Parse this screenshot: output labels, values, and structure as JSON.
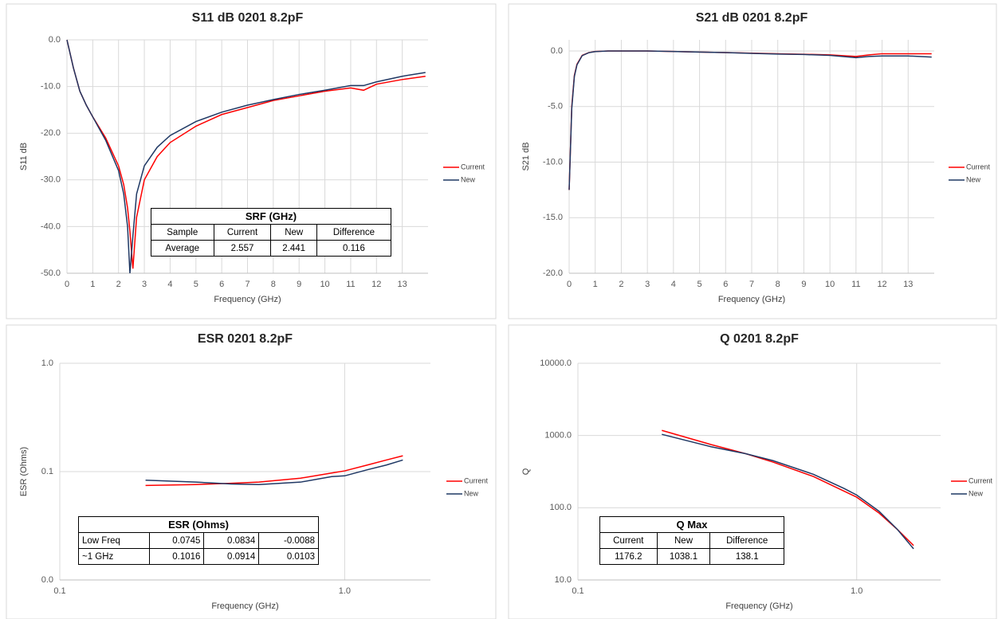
{
  "chart_data": [
    {
      "type": "line",
      "title": "S11 dB 0201 8.2pF",
      "x_label": "Frequency  (GHz)",
      "y_label": "S11 dB",
      "x": [
        0,
        0.25,
        0.5,
        0.75,
        1,
        1.5,
        2,
        2.2,
        2.35,
        2.441,
        2.557,
        2.7,
        3,
        3.5,
        4,
        5,
        6,
        7,
        8,
        9,
        10,
        11,
        11.5,
        12,
        13,
        13.9
      ],
      "series": [
        {
          "name": "Current",
          "color": "#ff0000",
          "values": [
            0,
            -6,
            -11,
            -14,
            -16.5,
            -21,
            -27,
            -31,
            -36,
            -41,
            -49,
            -38,
            -30,
            -25,
            -22,
            -18.5,
            -16,
            -14.5,
            -13,
            -12,
            -11,
            -10.3,
            -10.8,
            -9.5,
            -8.5,
            -7.8
          ]
        },
        {
          "name": "New",
          "color": "#1f3864",
          "values": [
            0,
            -6,
            -11,
            -14,
            -16.5,
            -21.5,
            -28,
            -33,
            -40,
            -50,
            -42,
            -33,
            -27,
            -23,
            -20.5,
            -17.5,
            -15.5,
            -14,
            -12.8,
            -11.7,
            -10.8,
            -9.8,
            -9.8,
            -9,
            -7.8,
            -7
          ]
        }
      ],
      "xlim": [
        0,
        14
      ],
      "xticks": [
        0,
        1,
        2,
        3,
        4,
        5,
        6,
        7,
        8,
        9,
        10,
        11,
        12,
        13
      ],
      "ylim": [
        -50,
        0
      ],
      "yticks": [
        {
          "value": 0,
          "label": "0.0"
        },
        {
          "value": -10,
          "label": "-10.0"
        },
        {
          "value": -20,
          "label": "-20.0"
        },
        {
          "value": -30,
          "label": "-30.0"
        },
        {
          "value": -40,
          "label": "-40.0"
        },
        {
          "value": -50,
          "label": "-50.0"
        }
      ],
      "grid": true,
      "legend": "right",
      "table": {
        "title": "SRF (GHz)",
        "header": [
          "Sample",
          "Current",
          "New",
          "Difference"
        ],
        "rows": [
          [
            "Average",
            "2.557",
            "2.441",
            "0.116"
          ]
        ]
      }
    },
    {
      "type": "line",
      "title": "S21 dB 0201 8.2pF",
      "x_label": "Frequency  (GHz)",
      "y_label": "S21 dB",
      "x": [
        0,
        0.1,
        0.2,
        0.3,
        0.5,
        0.75,
        1,
        1.5,
        2,
        3,
        4,
        5,
        6,
        7,
        8,
        9,
        10,
        11,
        11.5,
        12,
        13,
        13.9
      ],
      "series": [
        {
          "name": "Current",
          "color": "#ff0000",
          "values": [
            -12.5,
            -5,
            -2.2,
            -1.2,
            -0.4,
            -0.15,
            -0.05,
            0,
            0,
            0,
            -0.05,
            -0.1,
            -0.15,
            -0.2,
            -0.25,
            -0.3,
            -0.35,
            -0.5,
            -0.35,
            -0.25,
            -0.25,
            -0.25
          ]
        },
        {
          "name": "New",
          "color": "#1f3864",
          "values": [
            -12.5,
            -5.2,
            -2.3,
            -1.25,
            -0.42,
            -0.16,
            -0.06,
            0,
            0,
            0,
            -0.05,
            -0.1,
            -0.15,
            -0.22,
            -0.28,
            -0.32,
            -0.4,
            -0.6,
            -0.5,
            -0.45,
            -0.45,
            -0.55
          ]
        }
      ],
      "xlim": [
        0,
        14
      ],
      "xticks": [
        0,
        1,
        2,
        3,
        4,
        5,
        6,
        7,
        8,
        9,
        10,
        11,
        12,
        13
      ],
      "ylim": [
        -20,
        1
      ],
      "yticks": [
        {
          "value": 0,
          "label": "0.0"
        },
        {
          "value": -5,
          "label": "-5.0"
        },
        {
          "value": -10,
          "label": "-10.0"
        },
        {
          "value": -15,
          "label": "-15.0"
        },
        {
          "value": -20,
          "label": "-20.0"
        }
      ],
      "grid": true,
      "legend": "right"
    },
    {
      "type": "line",
      "title": "ESR 0201 8.2pF",
      "x_label": "Frequency  (GHz)",
      "y_label": "ESR (Ohms)",
      "x": [
        0.2,
        0.3,
        0.4,
        0.5,
        0.7,
        0.9,
        1.0,
        1.2,
        1.4,
        1.6
      ],
      "series": [
        {
          "name": "Current",
          "color": "#ff0000",
          "values": [
            0.0745,
            0.076,
            0.078,
            0.08,
            0.087,
            0.097,
            0.1016,
            0.115,
            0.128,
            0.14
          ]
        },
        {
          "name": "New",
          "color": "#1f3864",
          "values": [
            0.0834,
            0.08,
            0.077,
            0.076,
            0.08,
            0.09,
            0.0914,
            0.104,
            0.115,
            0.128
          ]
        }
      ],
      "log_x": true,
      "log_y": true,
      "xlim": [
        0.1,
        2.0
      ],
      "xticks": [
        0.1,
        {
          "value": 1,
          "label": "1.0"
        }
      ],
      "ylim": [
        0.01,
        1
      ],
      "yticks": [
        {
          "value": 0.01,
          "label": "0.0"
        },
        0.1,
        {
          "value": 1,
          "label": "1.0"
        }
      ],
      "grid": true,
      "legend": "right",
      "table": {
        "title": "ESR (Ohms)",
        "rows": [
          [
            "Low Freq",
            "0.0745",
            "0.0834",
            "-0.0088"
          ],
          [
            "~1 GHz",
            "0.1016",
            "0.0914",
            "0.0103"
          ]
        ]
      }
    },
    {
      "type": "line",
      "title": "Q 0201 8.2pF",
      "x_label": "Frequency  (GHz)",
      "y_label": "Q",
      "x": [
        0.2,
        0.3,
        0.4,
        0.5,
        0.7,
        0.9,
        1.0,
        1.2,
        1.4,
        1.6
      ],
      "series": [
        {
          "name": "Current",
          "color": "#ff0000",
          "values": [
            1176.2,
            750,
            560,
            430,
            270,
            170,
            140,
            85,
            50,
            30
          ]
        },
        {
          "name": "New",
          "color": "#1f3864",
          "values": [
            1038.1,
            700,
            560,
            450,
            290,
            185,
            150,
            90,
            50,
            27
          ]
        }
      ],
      "log_x": true,
      "log_y": true,
      "xlim": [
        0.1,
        2.0
      ],
      "xticks": [
        0.1,
        {
          "value": 1,
          "label": "1.0"
        }
      ],
      "ylim": [
        10,
        10000
      ],
      "yticks": [
        {
          "value": 10,
          "label": "10.0"
        },
        {
          "value": 100,
          "label": "100.0"
        },
        {
          "value": 1000,
          "label": "1000.0"
        },
        {
          "value": 10000,
          "label": "10000.0"
        }
      ],
      "grid": true,
      "legend": "right",
      "table": {
        "title": "Q Max",
        "header": [
          "Current",
          "New",
          "Difference"
        ],
        "rows": [
          [
            "1176.2",
            "1038.1",
            "138.1"
          ]
        ]
      }
    }
  ]
}
